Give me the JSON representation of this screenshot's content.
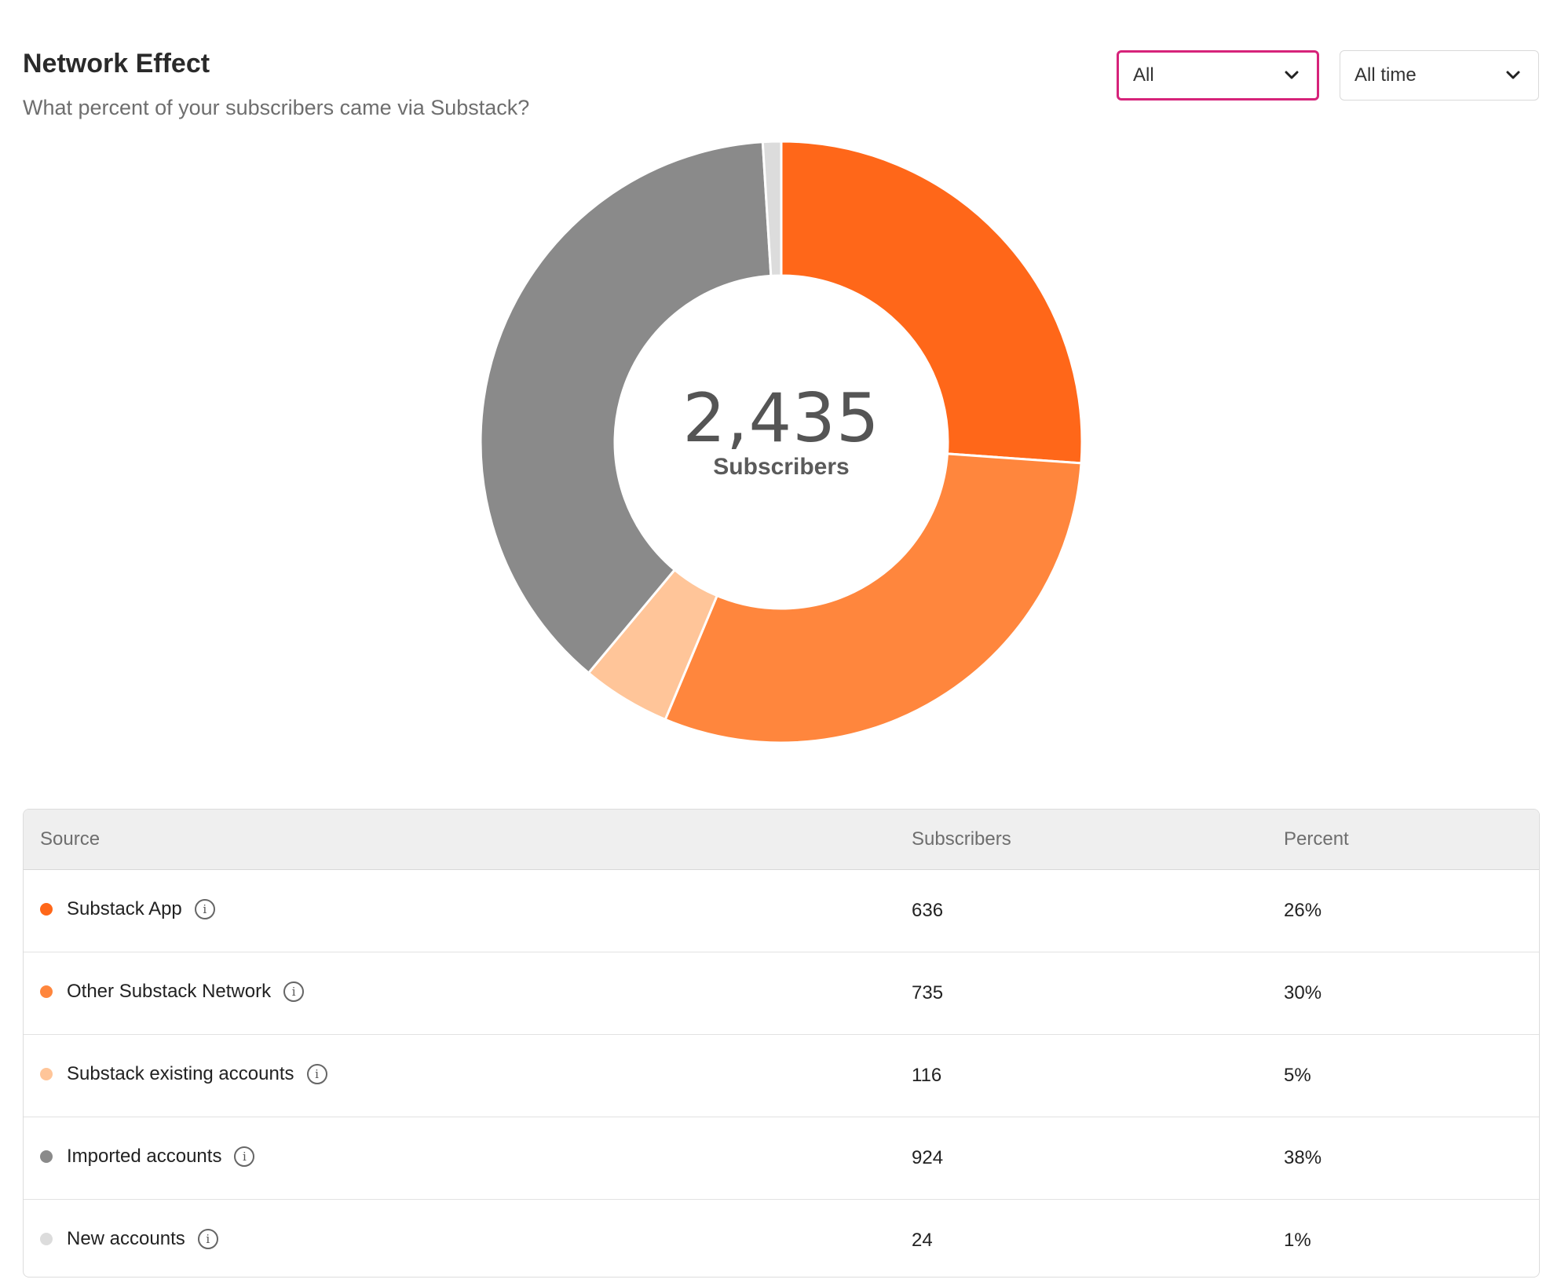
{
  "header": {
    "title": "Network Effect",
    "subtitle": "What percent of your subscribers came via Substack?"
  },
  "filters": {
    "audience": {
      "value": "All"
    },
    "period": {
      "value": "All time"
    }
  },
  "summary": {
    "total": "2,435",
    "label": "Subscribers"
  },
  "table": {
    "headers": {
      "source": "Source",
      "subscribers": "Subscribers",
      "percent": "Percent"
    },
    "rows": [
      {
        "source": "Substack App",
        "subscribers": "636",
        "percent": "26%",
        "color": "#ff6719"
      },
      {
        "source": "Other Substack Network",
        "subscribers": "735",
        "percent": "30%",
        "color": "#ff863d"
      },
      {
        "source": "Substack existing accounts",
        "subscribers": "116",
        "percent": "5%",
        "color": "#ffc599"
      },
      {
        "source": "Imported accounts",
        "subscribers": "924",
        "percent": "38%",
        "color": "#8a8a8a"
      },
      {
        "source": "New accounts",
        "subscribers": "24",
        "percent": "1%",
        "color": "#dcdcdc"
      }
    ]
  },
  "chart_data": {
    "type": "pie",
    "variant": "donut",
    "categories": [
      "Substack App",
      "Other Substack Network",
      "Substack existing accounts",
      "Imported accounts",
      "New accounts"
    ],
    "values": [
      636,
      735,
      116,
      924,
      24
    ],
    "colors": [
      "#ff6719",
      "#ff863d",
      "#ffc599",
      "#8a8a8a",
      "#dcdcdc"
    ],
    "start_angle_deg": 0,
    "direction": "clockwise"
  }
}
